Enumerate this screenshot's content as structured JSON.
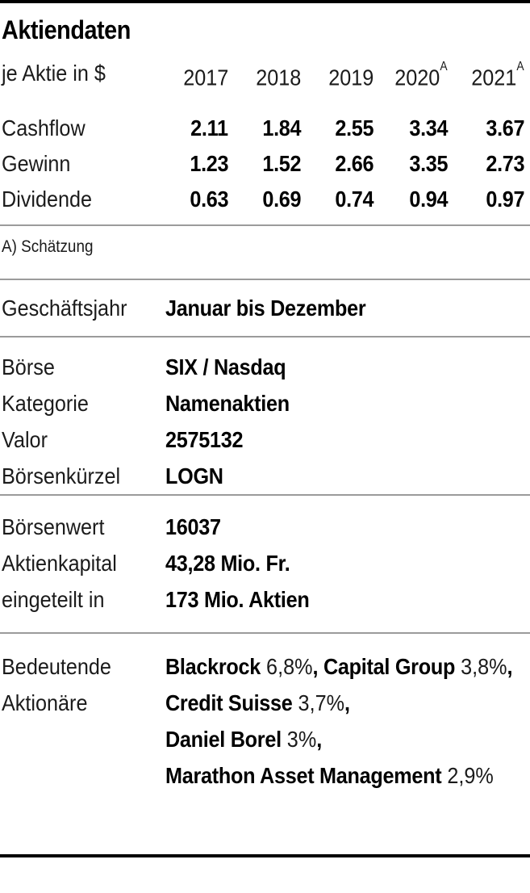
{
  "colors": {
    "background": "#ffffff",
    "text": "#000000",
    "label_text": "#1b1b1b",
    "rule_black": "#000000",
    "rule_gray": "#9b9b9b"
  },
  "doc": {
    "title": "Aktiendaten",
    "unit_label": "je Aktie in $",
    "years": [
      {
        "label": "2017",
        "sup": ""
      },
      {
        "label": "2018",
        "sup": ""
      },
      {
        "label": "2019",
        "sup": ""
      },
      {
        "label": "2020",
        "sup": "A"
      },
      {
        "label": "2021",
        "sup": "A"
      }
    ],
    "rows": [
      {
        "label": "Cashflow",
        "values": [
          "2.11",
          "1.84",
          "2.55",
          "3.34",
          "3.67"
        ]
      },
      {
        "label": "Gewinn",
        "values": [
          "1.23",
          "1.52",
          "2.66",
          "3.35",
          "2.73"
        ]
      },
      {
        "label": "Dividende",
        "values": [
          "0.63",
          "0.69",
          "0.74",
          "0.94",
          "0.97"
        ]
      }
    ],
    "footnote": "A) Schätzung"
  },
  "fiscal": {
    "label": "Geschäftsjahr",
    "value": "Januar bis Dezember"
  },
  "listing": {
    "rows": [
      {
        "label": "Börse",
        "value": "SIX / Nasdaq"
      },
      {
        "label": "Kategorie",
        "value": "Namenaktien"
      },
      {
        "label": "Valor",
        "value": "2575132"
      },
      {
        "label": "Börsenkürzel",
        "value": "LOGN"
      }
    ]
  },
  "capital": {
    "rows": [
      {
        "label": "Börsenwert",
        "value": "16037"
      },
      {
        "label": "Aktienkapital",
        "value": "43,28 Mio. Fr."
      },
      {
        "label": "eingeteilt in",
        "value": "173 Mio. Aktien"
      }
    ]
  },
  "shareholders": {
    "label_line1": "Bedeutende",
    "label_line2": "Aktionäre",
    "lines": [
      {
        "segments": [
          {
            "text": "Blackrock",
            "bold": true
          },
          {
            "text": " 6,8%",
            "bold": false
          },
          {
            "text": ", ",
            "bold": true
          },
          {
            "text": "Capital Group",
            "bold": true
          },
          {
            "text": " 3,8%",
            "bold": false
          },
          {
            "text": ",",
            "bold": true
          }
        ]
      },
      {
        "segments": [
          {
            "text": "Credit Suisse",
            "bold": true
          },
          {
            "text": " 3,7%",
            "bold": false
          },
          {
            "text": ",",
            "bold": true
          }
        ]
      },
      {
        "segments": [
          {
            "text": "Daniel Borel",
            "bold": true
          },
          {
            "text": " 3%",
            "bold": false
          },
          {
            "text": ",",
            "bold": true
          }
        ]
      },
      {
        "segments": [
          {
            "text": "Marathon Asset Management",
            "bold": true
          },
          {
            "text": " 2,9%",
            "bold": false
          }
        ]
      }
    ]
  },
  "chart_data": {
    "type": "table",
    "title": "Aktiendaten",
    "unit": "je Aktie in $",
    "columns": [
      "2017",
      "2018",
      "2019",
      "2020A",
      "2021A"
    ],
    "rows": [
      {
        "label": "Cashflow",
        "values": [
          2.11,
          1.84,
          2.55,
          3.34,
          3.67
        ]
      },
      {
        "label": "Gewinn",
        "values": [
          1.23,
          1.52,
          2.66,
          3.35,
          2.73
        ]
      },
      {
        "label": "Dividende",
        "values": [
          0.63,
          0.69,
          0.74,
          0.94,
          0.97
        ]
      }
    ],
    "footnote": "A) Schätzung"
  }
}
